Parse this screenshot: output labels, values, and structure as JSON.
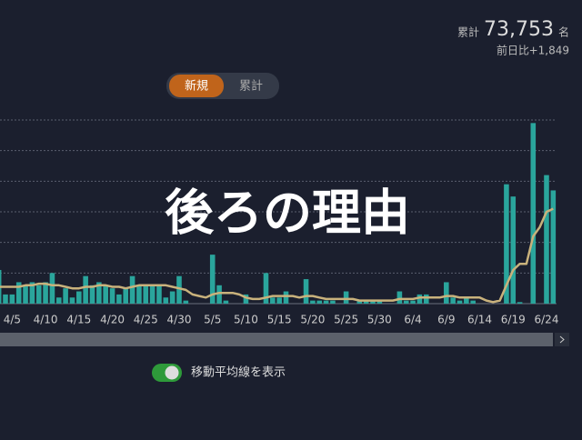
{
  "header": {
    "total_label": "累計",
    "total_value": "73,753",
    "total_unit": "名",
    "diff_label": "前日比",
    "diff_value": "+1,849"
  },
  "tabs": [
    "新規",
    "累計"
  ],
  "overlay": "後ろの理由",
  "toggle_label": "移動平均線を表示",
  "chart_data": {
    "type": "bar",
    "categories": [
      null,
      null,
      "4/5",
      null,
      null,
      null,
      null,
      "4/10",
      null,
      null,
      null,
      null,
      "4/15",
      null,
      null,
      null,
      null,
      "4/20",
      null,
      null,
      null,
      null,
      "4/25",
      null,
      null,
      null,
      null,
      "4/30",
      null,
      null,
      null,
      null,
      "5/5",
      null,
      null,
      null,
      null,
      "5/10",
      null,
      null,
      null,
      null,
      "5/15",
      null,
      null,
      null,
      null,
      "5/20",
      null,
      null,
      null,
      null,
      "5/25",
      null,
      null,
      null,
      null,
      "5/30",
      null,
      null,
      null,
      null,
      "6/4",
      null,
      null,
      null,
      null,
      "6/9",
      null,
      null,
      null,
      null,
      "6/14",
      null,
      null,
      null,
      null,
      "6/19",
      null,
      null,
      null,
      null,
      "6/24",
      null
    ],
    "series": [
      {
        "color": "#2aa59c",
        "values": [
          1.1,
          0.3,
          0.3,
          0.7,
          0.6,
          0.7,
          0.6,
          0.7,
          1.0,
          0.2,
          0.5,
          0.2,
          0.4,
          0.9,
          0.6,
          0.7,
          0.6,
          0.5,
          0.3,
          0.5,
          0.9,
          0.6,
          0.6,
          0.6,
          0.6,
          0.2,
          0.4,
          0.9,
          0.1,
          0,
          0,
          0,
          1.6,
          0.6,
          0.1,
          0,
          0,
          0.3,
          0,
          0,
          1.0,
          0.2,
          0.2,
          0.4,
          0,
          0,
          0.8,
          0.1,
          0.1,
          0.1,
          0.1,
          0,
          0.4,
          0,
          0.1,
          0.1,
          0.1,
          0.1,
          0,
          0,
          0.4,
          0.1,
          0.1,
          0.3,
          0.3,
          0,
          0,
          0.7,
          0.2,
          0.1,
          0.2,
          0.1,
          0,
          0,
          0,
          0,
          3.9,
          3.5,
          0.05,
          0,
          5.9,
          0,
          4.2,
          3.7
        ]
      },
      {
        "type": "line",
        "color": "#c9b27c",
        "values": [
          0.55,
          0.55,
          0.55,
          0.55,
          0.6,
          0.6,
          0.65,
          0.65,
          0.6,
          0.6,
          0.55,
          0.5,
          0.5,
          0.55,
          0.55,
          0.6,
          0.6,
          0.55,
          0.55,
          0.5,
          0.55,
          0.6,
          0.6,
          0.6,
          0.6,
          0.6,
          0.55,
          0.5,
          0.45,
          0.3,
          0.25,
          0.2,
          0.3,
          0.35,
          0.35,
          0.35,
          0.3,
          0.2,
          0.15,
          0.15,
          0.2,
          0.25,
          0.25,
          0.25,
          0.25,
          0.2,
          0.25,
          0.25,
          0.2,
          0.15,
          0.15,
          0.15,
          0.15,
          0.15,
          0.1,
          0.1,
          0.1,
          0.1,
          0.1,
          0.1,
          0.15,
          0.15,
          0.15,
          0.2,
          0.2,
          0.2,
          0.2,
          0.25,
          0.25,
          0.2,
          0.2,
          0.2,
          0.2,
          0.1,
          0.05,
          0.1,
          0.6,
          1.1,
          1.3,
          1.3,
          2.2,
          2.5,
          3.0,
          3.1
        ]
      }
    ],
    "ylim": [
      0,
      6
    ],
    "yticks": [
      1,
      2,
      3,
      4,
      5,
      6
    ],
    "grid": true
  }
}
